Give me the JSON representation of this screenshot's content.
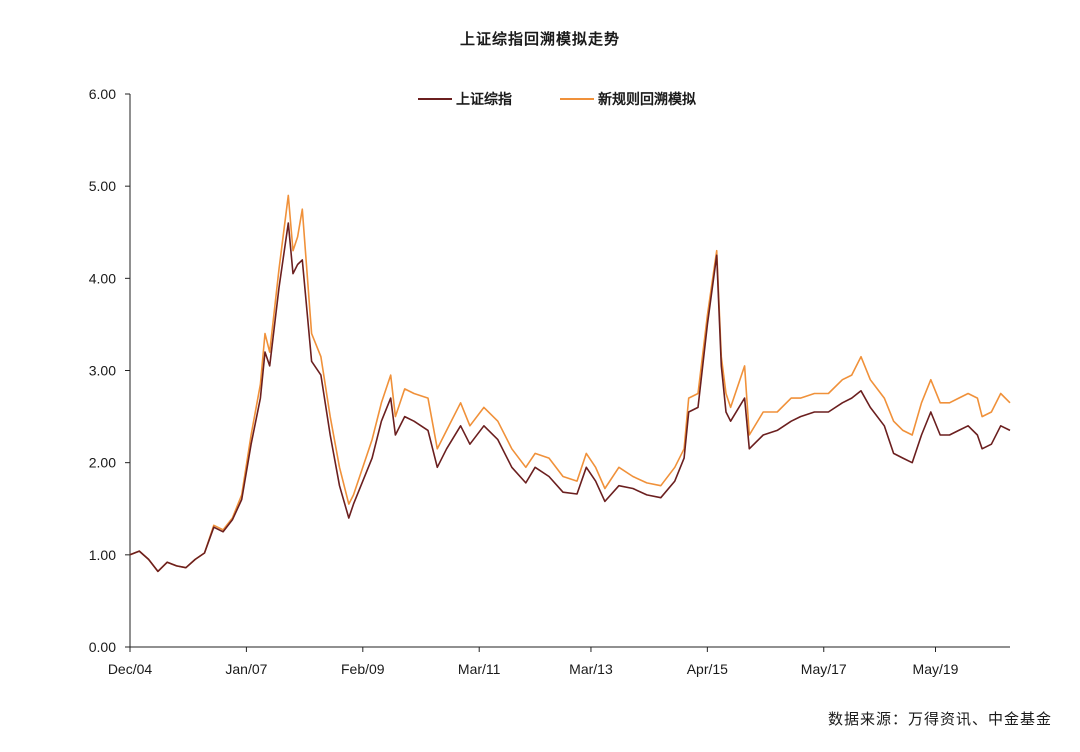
{
  "source_note": "数据来源：万得资讯、中金基金",
  "chart_data": {
    "type": "line",
    "title": "上证综指回溯模拟走势",
    "xlabel": "",
    "ylabel": "",
    "x_tick_labels": [
      "Dec/04",
      "Jan/07",
      "Feb/09",
      "Mar/11",
      "Mar/13",
      "Apr/15",
      "May/17",
      "May/19"
    ],
    "x_ticks": [
      "2004-12",
      "2007-01",
      "2009-02",
      "2011-03",
      "2013-03",
      "2015-04",
      "2017-05",
      "2019-05"
    ],
    "x_range": [
      "2004-12",
      "2020-09"
    ],
    "y_tick_labels": [
      "0.00",
      "1.00",
      "2.00",
      "3.00",
      "4.00",
      "5.00",
      "6.00"
    ],
    "ylim": [
      0,
      6
    ],
    "grid": false,
    "legend_position": "top-center",
    "series": [
      {
        "name": "上证综指",
        "color": "#6b1f1f",
        "points": [
          [
            "2004-12",
            1.0
          ],
          [
            "2005-02",
            1.04
          ],
          [
            "2005-04",
            0.95
          ],
          [
            "2005-06",
            0.82
          ],
          [
            "2005-08",
            0.92
          ],
          [
            "2005-10",
            0.88
          ],
          [
            "2005-12",
            0.86
          ],
          [
            "2006-02",
            0.95
          ],
          [
            "2006-04",
            1.02
          ],
          [
            "2006-06",
            1.3
          ],
          [
            "2006-08",
            1.25
          ],
          [
            "2006-10",
            1.38
          ],
          [
            "2006-12",
            1.6
          ],
          [
            "2007-02",
            2.2
          ],
          [
            "2007-04",
            2.7
          ],
          [
            "2007-05",
            3.2
          ],
          [
            "2007-06",
            3.05
          ],
          [
            "2007-08",
            3.9
          ],
          [
            "2007-10",
            4.6
          ],
          [
            "2007-11",
            4.05
          ],
          [
            "2007-12",
            4.15
          ],
          [
            "2008-01",
            4.2
          ],
          [
            "2008-03",
            3.1
          ],
          [
            "2008-05",
            2.95
          ],
          [
            "2008-07",
            2.3
          ],
          [
            "2008-09",
            1.75
          ],
          [
            "2008-11",
            1.4
          ],
          [
            "2008-12",
            1.55
          ],
          [
            "2009-02",
            1.8
          ],
          [
            "2009-04",
            2.05
          ],
          [
            "2009-06",
            2.45
          ],
          [
            "2009-08",
            2.7
          ],
          [
            "2009-09",
            2.3
          ],
          [
            "2009-11",
            2.5
          ],
          [
            "2010-01",
            2.45
          ],
          [
            "2010-04",
            2.35
          ],
          [
            "2010-06",
            1.95
          ],
          [
            "2010-08",
            2.15
          ],
          [
            "2010-11",
            2.4
          ],
          [
            "2011-01",
            2.2
          ],
          [
            "2011-04",
            2.4
          ],
          [
            "2011-07",
            2.25
          ],
          [
            "2011-10",
            1.95
          ],
          [
            "2012-01",
            1.78
          ],
          [
            "2012-03",
            1.95
          ],
          [
            "2012-06",
            1.85
          ],
          [
            "2012-09",
            1.68
          ],
          [
            "2012-12",
            1.66
          ],
          [
            "2013-02",
            1.95
          ],
          [
            "2013-04",
            1.8
          ],
          [
            "2013-06",
            1.58
          ],
          [
            "2013-09",
            1.75
          ],
          [
            "2013-12",
            1.72
          ],
          [
            "2014-03",
            1.65
          ],
          [
            "2014-06",
            1.62
          ],
          [
            "2014-09",
            1.8
          ],
          [
            "2014-11",
            2.05
          ],
          [
            "2014-12",
            2.55
          ],
          [
            "2015-02",
            2.6
          ],
          [
            "2015-04",
            3.5
          ],
          [
            "2015-06",
            4.25
          ],
          [
            "2015-07",
            3.05
          ],
          [
            "2015-08",
            2.55
          ],
          [
            "2015-09",
            2.45
          ],
          [
            "2015-12",
            2.7
          ],
          [
            "2016-01",
            2.15
          ],
          [
            "2016-04",
            2.3
          ],
          [
            "2016-07",
            2.35
          ],
          [
            "2016-10",
            2.45
          ],
          [
            "2016-12",
            2.5
          ],
          [
            "2017-03",
            2.55
          ],
          [
            "2017-06",
            2.55
          ],
          [
            "2017-09",
            2.65
          ],
          [
            "2017-11",
            2.7
          ],
          [
            "2018-01",
            2.78
          ],
          [
            "2018-03",
            2.6
          ],
          [
            "2018-06",
            2.4
          ],
          [
            "2018-08",
            2.1
          ],
          [
            "2018-10",
            2.05
          ],
          [
            "2018-12",
            2.0
          ],
          [
            "2019-02",
            2.3
          ],
          [
            "2019-04",
            2.55
          ],
          [
            "2019-06",
            2.3
          ],
          [
            "2019-08",
            2.3
          ],
          [
            "2019-10",
            2.35
          ],
          [
            "2019-12",
            2.4
          ],
          [
            "2020-02",
            2.3
          ],
          [
            "2020-03",
            2.15
          ],
          [
            "2020-05",
            2.2
          ],
          [
            "2020-07",
            2.4
          ],
          [
            "2020-09",
            2.35
          ]
        ]
      },
      {
        "name": "新规则回溯模拟",
        "color": "#f0913a",
        "points": [
          [
            "2004-12",
            1.0
          ],
          [
            "2005-02",
            1.04
          ],
          [
            "2005-04",
            0.95
          ],
          [
            "2005-06",
            0.82
          ],
          [
            "2005-08",
            0.92
          ],
          [
            "2005-10",
            0.88
          ],
          [
            "2005-12",
            0.86
          ],
          [
            "2006-02",
            0.95
          ],
          [
            "2006-04",
            1.02
          ],
          [
            "2006-06",
            1.32
          ],
          [
            "2006-08",
            1.27
          ],
          [
            "2006-10",
            1.4
          ],
          [
            "2006-12",
            1.65
          ],
          [
            "2007-02",
            2.3
          ],
          [
            "2007-04",
            2.85
          ],
          [
            "2007-05",
            3.4
          ],
          [
            "2007-06",
            3.2
          ],
          [
            "2007-08",
            4.1
          ],
          [
            "2007-10",
            4.9
          ],
          [
            "2007-11",
            4.3
          ],
          [
            "2007-12",
            4.45
          ],
          [
            "2008-01",
            4.75
          ],
          [
            "2008-03",
            3.4
          ],
          [
            "2008-05",
            3.15
          ],
          [
            "2008-07",
            2.5
          ],
          [
            "2008-09",
            1.95
          ],
          [
            "2008-11",
            1.55
          ],
          [
            "2008-12",
            1.65
          ],
          [
            "2009-02",
            1.95
          ],
          [
            "2009-04",
            2.25
          ],
          [
            "2009-06",
            2.65
          ],
          [
            "2009-08",
            2.95
          ],
          [
            "2009-09",
            2.5
          ],
          [
            "2009-11",
            2.8
          ],
          [
            "2010-01",
            2.75
          ],
          [
            "2010-04",
            2.7
          ],
          [
            "2010-06",
            2.15
          ],
          [
            "2010-08",
            2.35
          ],
          [
            "2010-11",
            2.65
          ],
          [
            "2011-01",
            2.4
          ],
          [
            "2011-04",
            2.6
          ],
          [
            "2011-07",
            2.45
          ],
          [
            "2011-10",
            2.15
          ],
          [
            "2012-01",
            1.95
          ],
          [
            "2012-03",
            2.1
          ],
          [
            "2012-06",
            2.05
          ],
          [
            "2012-09",
            1.85
          ],
          [
            "2012-12",
            1.8
          ],
          [
            "2013-02",
            2.1
          ],
          [
            "2013-04",
            1.95
          ],
          [
            "2013-06",
            1.72
          ],
          [
            "2013-09",
            1.95
          ],
          [
            "2013-12",
            1.85
          ],
          [
            "2014-03",
            1.78
          ],
          [
            "2014-06",
            1.75
          ],
          [
            "2014-09",
            1.95
          ],
          [
            "2014-11",
            2.15
          ],
          [
            "2014-12",
            2.7
          ],
          [
            "2015-02",
            2.75
          ],
          [
            "2015-04",
            3.6
          ],
          [
            "2015-06",
            4.3
          ],
          [
            "2015-07",
            3.15
          ],
          [
            "2015-08",
            2.75
          ],
          [
            "2015-09",
            2.6
          ],
          [
            "2015-12",
            3.05
          ],
          [
            "2016-01",
            2.3
          ],
          [
            "2016-04",
            2.55
          ],
          [
            "2016-07",
            2.55
          ],
          [
            "2016-10",
            2.7
          ],
          [
            "2016-12",
            2.7
          ],
          [
            "2017-03",
            2.75
          ],
          [
            "2017-06",
            2.75
          ],
          [
            "2017-09",
            2.9
          ],
          [
            "2017-11",
            2.95
          ],
          [
            "2018-01",
            3.15
          ],
          [
            "2018-03",
            2.9
          ],
          [
            "2018-06",
            2.7
          ],
          [
            "2018-08",
            2.45
          ],
          [
            "2018-10",
            2.35
          ],
          [
            "2018-12",
            2.3
          ],
          [
            "2019-02",
            2.65
          ],
          [
            "2019-04",
            2.9
          ],
          [
            "2019-06",
            2.65
          ],
          [
            "2019-08",
            2.65
          ],
          [
            "2019-10",
            2.7
          ],
          [
            "2019-12",
            2.75
          ],
          [
            "2020-02",
            2.7
          ],
          [
            "2020-03",
            2.5
          ],
          [
            "2020-05",
            2.55
          ],
          [
            "2020-07",
            2.75
          ],
          [
            "2020-09",
            2.65
          ]
        ]
      }
    ]
  }
}
